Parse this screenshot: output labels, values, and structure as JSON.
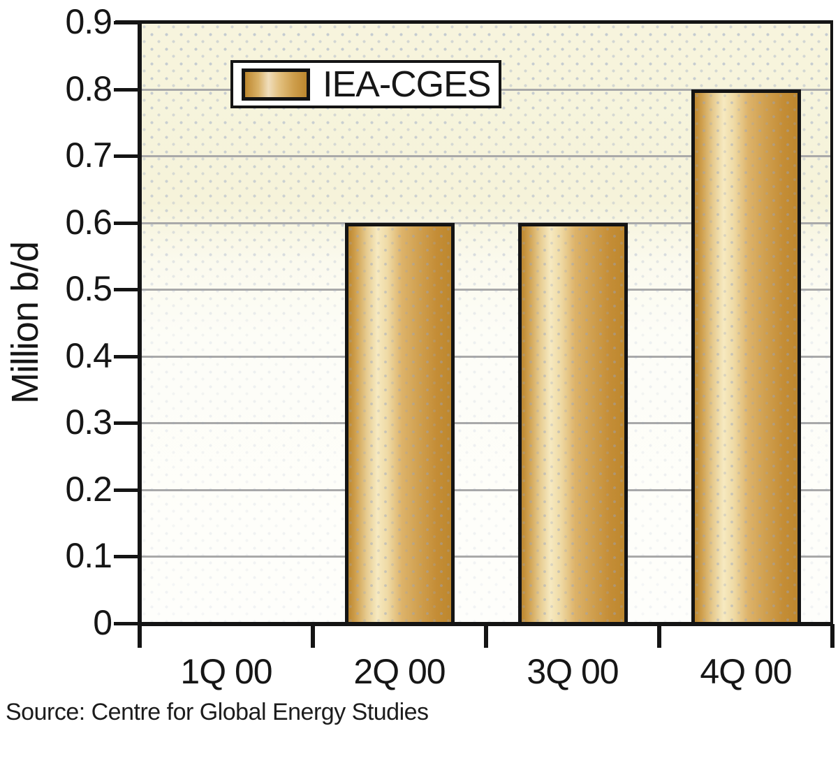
{
  "chart_data": {
    "type": "bar",
    "title": "",
    "ylabel": "Million b/d",
    "xlabel": "",
    "categories": [
      "1Q 00",
      "2Q 00",
      "3Q 00",
      "4Q 00"
    ],
    "series": [
      {
        "name": "IEA-CGES",
        "values": [
          0,
          0.6,
          0.6,
          0.8
        ]
      }
    ],
    "ylim": [
      0,
      0.9
    ],
    "ytick_step": 0.1,
    "ytick_labels": [
      "0",
      "0.1",
      "0.2",
      "0.3",
      "0.4",
      "0.5",
      "0.6",
      "0.7",
      "0.8",
      "0.9"
    ],
    "grid": true,
    "legend_position": "inside-top-left"
  },
  "source_note": "Source: Centre for Global Energy Studies",
  "colors": {
    "axis": "#141414",
    "gridline": "#a9a9a9",
    "plot_bg_top": "#f7f4dd",
    "plot_bg_bottom": "#fefefb",
    "bar_edge": "#bd872e",
    "bar_highlight": "#f6e9c0",
    "bar_border": "#141414",
    "page_bg": "#ffffff",
    "text": "#161616"
  }
}
